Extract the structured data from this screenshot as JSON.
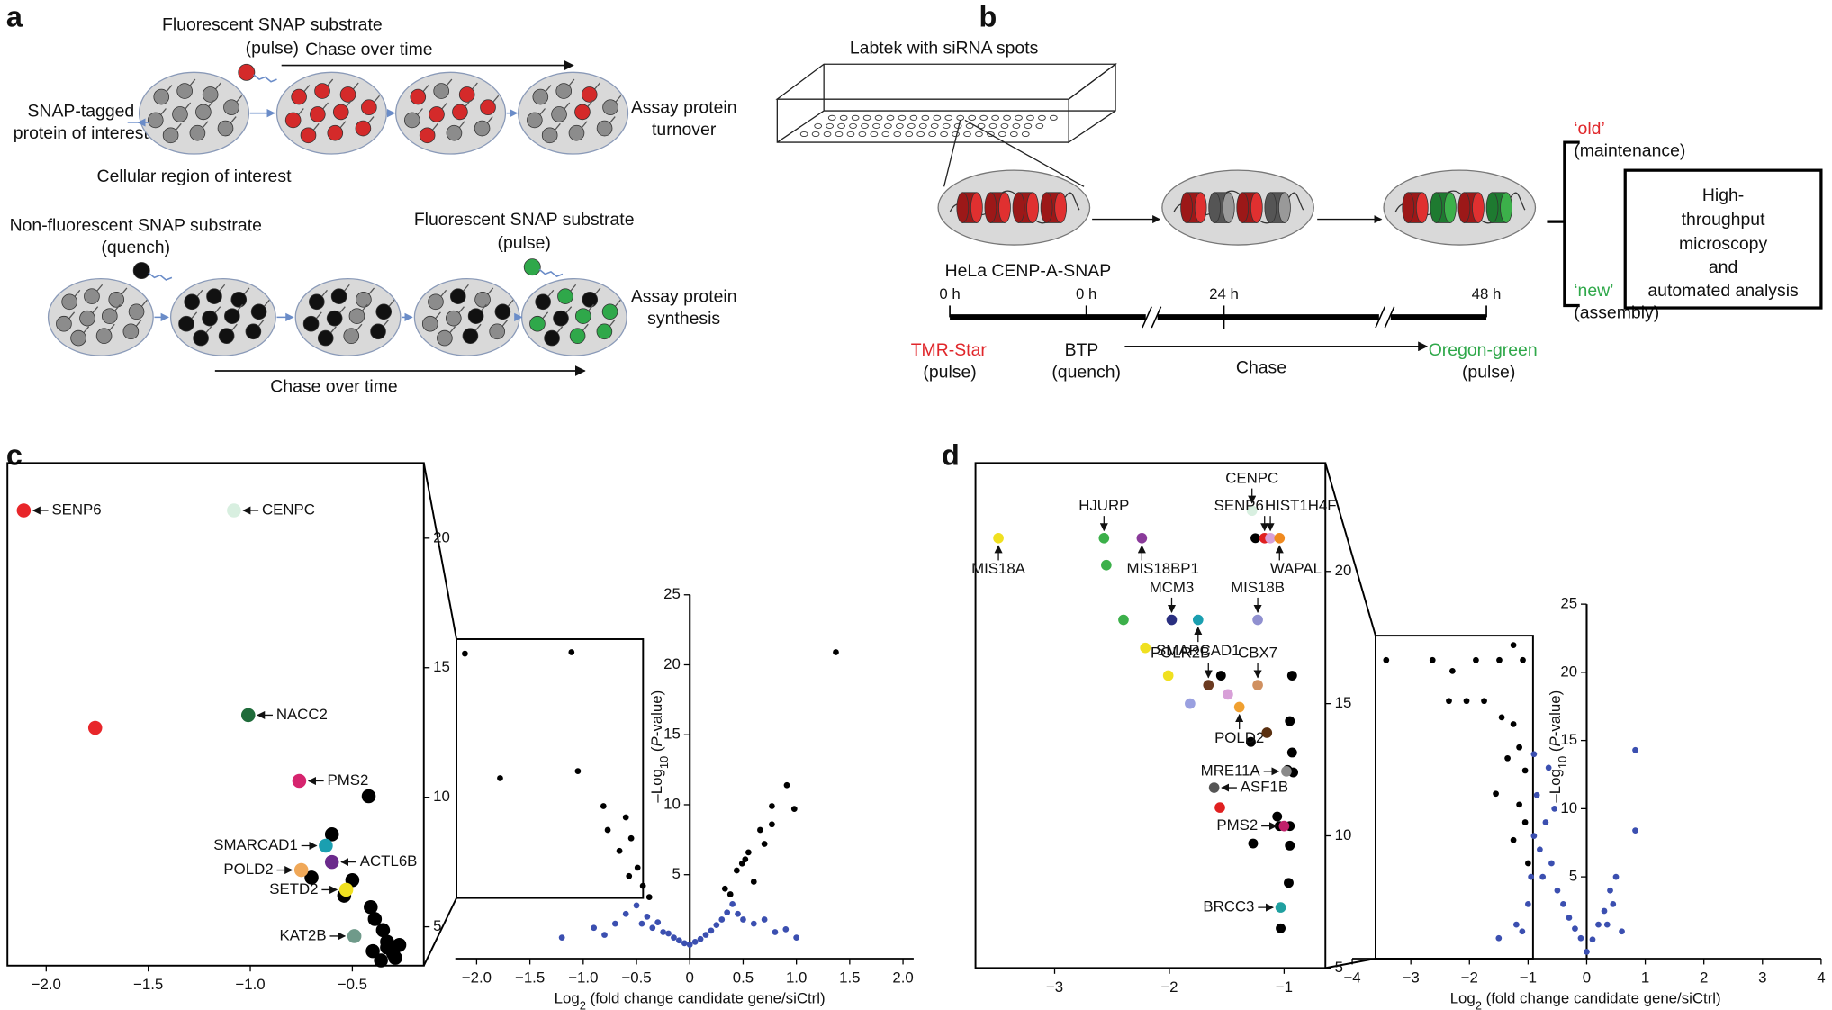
{
  "panels": {
    "a": {
      "label": "a",
      "pulse_substrate": "Fluorescent SNAP substrate",
      "pulse_note": "(pulse)",
      "chase_top": "Chase over time",
      "input_1": "SNAP-tagged",
      "input_2": "protein of interest",
      "turnover_1": "Assay protein",
      "turnover_2": "turnover",
      "region": "Cellular region of interest",
      "quench_substrate": "Non-fluorescent SNAP substrate",
      "quench_note": "(quench)",
      "pulse_substrate_2": "Fluorescent SNAP substrate",
      "pulse_note_2": "(pulse)",
      "synthesis_1": "Assay protein",
      "synthesis_2": "synthesis",
      "chase_bottom": "Chase over time"
    },
    "b": {
      "label": "b",
      "labtek": "Labtek with siRNA spots",
      "cell_line": "HeLa CENP-A-SNAP",
      "times": [
        "0 h",
        "0 h",
        "24 h",
        "48 h"
      ],
      "tmr": "TMR-Star",
      "tmr_note": "(pulse)",
      "btp": "BTP",
      "btp_note": "(quench)",
      "chase": "Chase",
      "oregon": "Oregon-green",
      "oregon_note": "(pulse)",
      "old": "‘old’",
      "old_note": "(maintenance)",
      "new": "‘new’",
      "new_note": "(assembly)",
      "box": [
        "High-",
        "throughput",
        "microscopy",
        "and",
        "automated analysis"
      ]
    },
    "c": {
      "label": "c"
    },
    "d": {
      "label": "d"
    }
  },
  "chart_data": [
    {
      "type": "scatter",
      "xlim": [
        -2.19,
        -0.15
      ],
      "ylim": [
        3.5,
        22.9
      ],
      "xticks": [
        {
          "value": -2,
          "label": "−2.0"
        },
        {
          "value": -1.5,
          "label": "−1.5"
        },
        {
          "value": -1,
          "label": "−1.0"
        },
        {
          "value": -0.5,
          "label": "−0.5"
        }
      ],
      "yticks": [
        5,
        10,
        15,
        20
      ],
      "series": [
        {
          "color": "#000000",
          "x": [
            -0.42,
            -0.6,
            -0.7,
            -0.5,
            -0.54,
            -0.41,
            -0.39,
            -0.35,
            -0.33,
            -0.3,
            -0.36,
            -0.4,
            -0.33,
            -0.27,
            -0.29
          ],
          "values": [
            10.04,
            8.57,
            6.9,
            6.8,
            6.2,
            5.76,
            5.3,
            4.87,
            4.42,
            3.97,
            3.7,
            4.06,
            4.2,
            4.3,
            3.8
          ]
        }
      ],
      "highlights": [
        {
          "label": "SENP6",
          "color": "#e8262a",
          "x": -2.11,
          "y": 21.07
        },
        {
          "label": "CENPC",
          "color": "#d8efe0",
          "x": -1.08,
          "y": 21.07
        },
        {
          "color": "#e8262a",
          "x": -1.76,
          "y": 12.68
        },
        {
          "label": "NACC2",
          "color": "#1f6b3a",
          "x": -1.01,
          "y": 13.17
        },
        {
          "label": "PMS2",
          "color": "#d6246e",
          "x": -0.76,
          "y": 10.63
        },
        {
          "label": "SMARCAD1",
          "color": "#1a9fb0",
          "x": -0.63,
          "y": 8.13
        },
        {
          "label": "ACTL6B",
          "color": "#6b2a8c",
          "x": -0.6,
          "y": 7.5
        },
        {
          "label": "POLD2",
          "color": "#f0a858",
          "x": -0.75,
          "y": 7.19
        },
        {
          "label": "SETD2",
          "color": "#f0e020",
          "x": -0.53,
          "y": 6.43
        },
        {
          "label": "KAT2B",
          "color": "#6f9a8a",
          "x": -0.49,
          "y": 4.64
        }
      ]
    },
    {
      "type": "scatter",
      "xlim": [
        -2.2,
        2.1
      ],
      "ylim": [
        -1,
        25
      ],
      "xticks": [
        {
          "value": -2,
          "label": "−2.0"
        },
        {
          "value": -1.5,
          "label": "−1.5"
        },
        {
          "value": -1,
          "label": "−1.0"
        },
        {
          "value": -0.5,
          "label": "−0.5"
        },
        0,
        0.5,
        {
          "value": 1,
          "label": "1.0"
        },
        1.5,
        {
          "value": 2,
          "label": "2.0"
        }
      ],
      "yticks": [
        5,
        10,
        15,
        20,
        25
      ],
      "ylabel_parts": [
        "–Log",
        "10",
        " (",
        "P",
        "-value)"
      ],
      "xlabel_parts": [
        "Log",
        "2",
        " (fold change candidate gene/siCtrl)"
      ],
      "series": [
        {
          "color": "#3b4fb0",
          "x": [
            -1.2,
            -0.9,
            -0.7,
            -0.6,
            -0.5,
            -0.45,
            -0.4,
            -0.35,
            -0.3,
            -0.25,
            -0.2,
            -0.15,
            -0.1,
            -0.05,
            0,
            0.05,
            0.1,
            0.15,
            0.2,
            0.25,
            0.3,
            0.35,
            0.4,
            0.45,
            0.5,
            0.6,
            0.7,
            0.8,
            1.0,
            -0.8,
            0.9
          ],
          "values": [
            0.5,
            1.2,
            1.5,
            2.2,
            2.8,
            1.5,
            2,
            1.2,
            1.6,
            0.9,
            0.8,
            0.5,
            0.3,
            0.1,
            0,
            0.2,
            0.4,
            0.7,
            1,
            1.4,
            1.8,
            2.3,
            2.9,
            2.2,
            1.8,
            1.5,
            1.8,
            0.9,
            0.5,
            0.7,
            1.1
          ]
        },
        {
          "color": "#000000",
          "x": [
            -2.11,
            -1.11,
            -1.78,
            -1.05,
            -0.81,
            -0.6,
            -0.77,
            -0.55,
            -0.66,
            -0.49,
            -0.44,
            -0.57,
            -0.38,
            1.37,
            0.91,
            0.98,
            0.77,
            0.66,
            0.55,
            0.44,
            0.6,
            0.38,
            0.49,
            0.77,
            0.33,
            0.7,
            0.52
          ],
          "values": [
            20.8,
            20.9,
            11.9,
            12.4,
            9.9,
            9.1,
            8.2,
            7.6,
            6.7,
            5.5,
            4.2,
            4.9,
            3.4,
            20.9,
            11.4,
            9.7,
            9.9,
            8.2,
            6.6,
            5.3,
            4.5,
            3.6,
            5.8,
            8.6,
            4.0,
            7.2,
            6.1
          ]
        }
      ]
    },
    {
      "type": "scatter",
      "xlim": [
        -3.69,
        -0.64
      ],
      "ylim": [
        5,
        24.1
      ],
      "xticks": [
        {
          "value": -3,
          "label": "−3"
        },
        {
          "value": -2,
          "label": "−2"
        },
        {
          "value": -1,
          "label": "−1"
        }
      ],
      "yticks": [
        5,
        10,
        15,
        20
      ],
      "series": [
        {
          "color": "#000000",
          "x": [
            -1.25,
            -1.55,
            -0.93,
            -1.29,
            -0.95,
            -0.93,
            -0.97,
            -0.92,
            -1.06,
            -1.04,
            -0.95,
            -1.27,
            -0.95,
            -0.96,
            -1.03
          ],
          "values": [
            21.26,
            16.06,
            16.06,
            13.55,
            14.34,
            13.15,
            12.49,
            12.4,
            10.73,
            10.37,
            10.37,
            9.71,
            9.63,
            8.22,
            6.5
          ]
        }
      ],
      "highlights": [
        {
          "label": "MIS18A",
          "color": "#f0e020",
          "x": -3.49,
          "y": 21.26
        },
        {
          "label": "HJURP",
          "color": "#3cb04a",
          "x": -2.57,
          "y": 21.26
        },
        {
          "label": "MIS18BP1",
          "color": "#8a3a9a",
          "x": -2.24,
          "y": 21.26
        },
        {
          "color": "#3cb04a",
          "x": -2.55,
          "y": 20.24
        },
        {
          "label": "CENPC",
          "color": "#d8efe0",
          "x": -1.28,
          "y": 22.3
        },
        {
          "label": "SENP6",
          "color": "#e02020",
          "x": -1.17,
          "y": 21.26
        },
        {
          "label": "HIST1H4F",
          "color": "#d8a0d8",
          "x": -1.12,
          "y": 21.26
        },
        {
          "label": "WAPAL",
          "color": "#f08a20",
          "x": -1.04,
          "y": 21.26
        },
        {
          "color": "#3cb04a",
          "x": -2.4,
          "y": 18.17
        },
        {
          "label": "MCM3",
          "color": "#2a2f80",
          "x": -1.98,
          "y": 18.17
        },
        {
          "label": "SMARCAD1",
          "color": "#1a9fb0",
          "x": -1.75,
          "y": 18.17
        },
        {
          "label": "MIS18B",
          "color": "#9090d0",
          "x": -1.23,
          "y": 18.17
        },
        {
          "color": "#f0e020",
          "x": -2.21,
          "y": 17.11
        },
        {
          "color": "#f0e020",
          "x": -2.01,
          "y": 16.06
        },
        {
          "color": "#9aa0e0",
          "x": -1.82,
          "y": 15.0
        },
        {
          "label": "POLR2B",
          "color": "#6b3a20",
          "x": -1.66,
          "y": 15.7
        },
        {
          "label": "CBX7",
          "color": "#d09060",
          "x": -1.23,
          "y": 15.7
        },
        {
          "color": "#d8a0d8",
          "x": -1.49,
          "y": 15.35
        },
        {
          "label": "POLD2",
          "color": "#f0a030",
          "x": -1.39,
          "y": 14.87
        },
        {
          "color": "#5a3010",
          "x": -1.15,
          "y": 13.9
        },
        {
          "label": "MRE11A",
          "color": "#8a8a8a",
          "x": -0.98,
          "y": 12.44
        },
        {
          "label": "ASF1B",
          "color": "#555555",
          "x": -1.61,
          "y": 11.82
        },
        {
          "color": "#e02020",
          "x": -1.56,
          "y": 11.07
        },
        {
          "label": "PMS2",
          "color": "#c0206a",
          "x": -1.0,
          "y": 10.37
        },
        {
          "label": "BRCC3",
          "color": "#20a0a0",
          "x": -1.03,
          "y": 7.29
        }
      ]
    },
    {
      "type": "scatter",
      "xlim": [
        -4,
        4
      ],
      "ylim": [
        -1,
        25
      ],
      "xticks": [
        {
          "value": -4,
          "label": "−4"
        },
        {
          "value": -3,
          "label": "−3"
        },
        {
          "value": -2,
          "label": "−2"
        },
        {
          "value": -1,
          "label": "−1"
        },
        0,
        1,
        2,
        3,
        4
      ],
      "yticks": [
        5,
        10,
        15,
        20,
        25
      ],
      "ylabel_parts": [
        "–Log",
        "10",
        " (",
        "P",
        "-value)"
      ],
      "xlabel_parts": [
        "Log",
        "2",
        " (fold change candidate gene/siCtrl)"
      ],
      "series": [
        {
          "color": "#3b4fb0",
          "x": [
            -1.5,
            -1.2,
            -1,
            -0.95,
            -0.9,
            -0.85,
            -0.8,
            -0.75,
            -0.7,
            -0.6,
            -0.5,
            -0.4,
            -0.3,
            -0.2,
            -0.1,
            0,
            0.1,
            0.2,
            0.3,
            0.4,
            0.5,
            0.45,
            0.35,
            0.6,
            0.83,
            0.83,
            -0.65,
            -0.9,
            -0.55,
            -1.1
          ],
          "values": [
            0.5,
            1.5,
            3,
            5,
            8,
            11,
            7,
            5,
            9,
            6,
            4,
            3,
            2,
            1.2,
            0.5,
            -0.5,
            0.4,
            1.5,
            2.5,
            4,
            5,
            3,
            1.5,
            1,
            14.3,
            8.4,
            13,
            14,
            10,
            1
          ]
        },
        {
          "color": "#000000",
          "x": [
            -3.42,
            -2.63,
            -2.29,
            -1.89,
            -1.49,
            -1.25,
            -1.09,
            -2.35,
            -2.05,
            -1.75,
            -1.45,
            -1.25,
            -1.15,
            -1.35,
            -1.05,
            -1.55,
            -1.15,
            -1.05,
            -1.25,
            -1.0
          ],
          "values": [
            20.9,
            20.9,
            20.1,
            20.9,
            20.9,
            22.0,
            20.9,
            17.9,
            17.9,
            17.9,
            16.7,
            16.2,
            14.5,
            13.7,
            12.8,
            11.1,
            10.3,
            9.0,
            7.7,
            6.0
          ]
        }
      ]
    }
  ]
}
